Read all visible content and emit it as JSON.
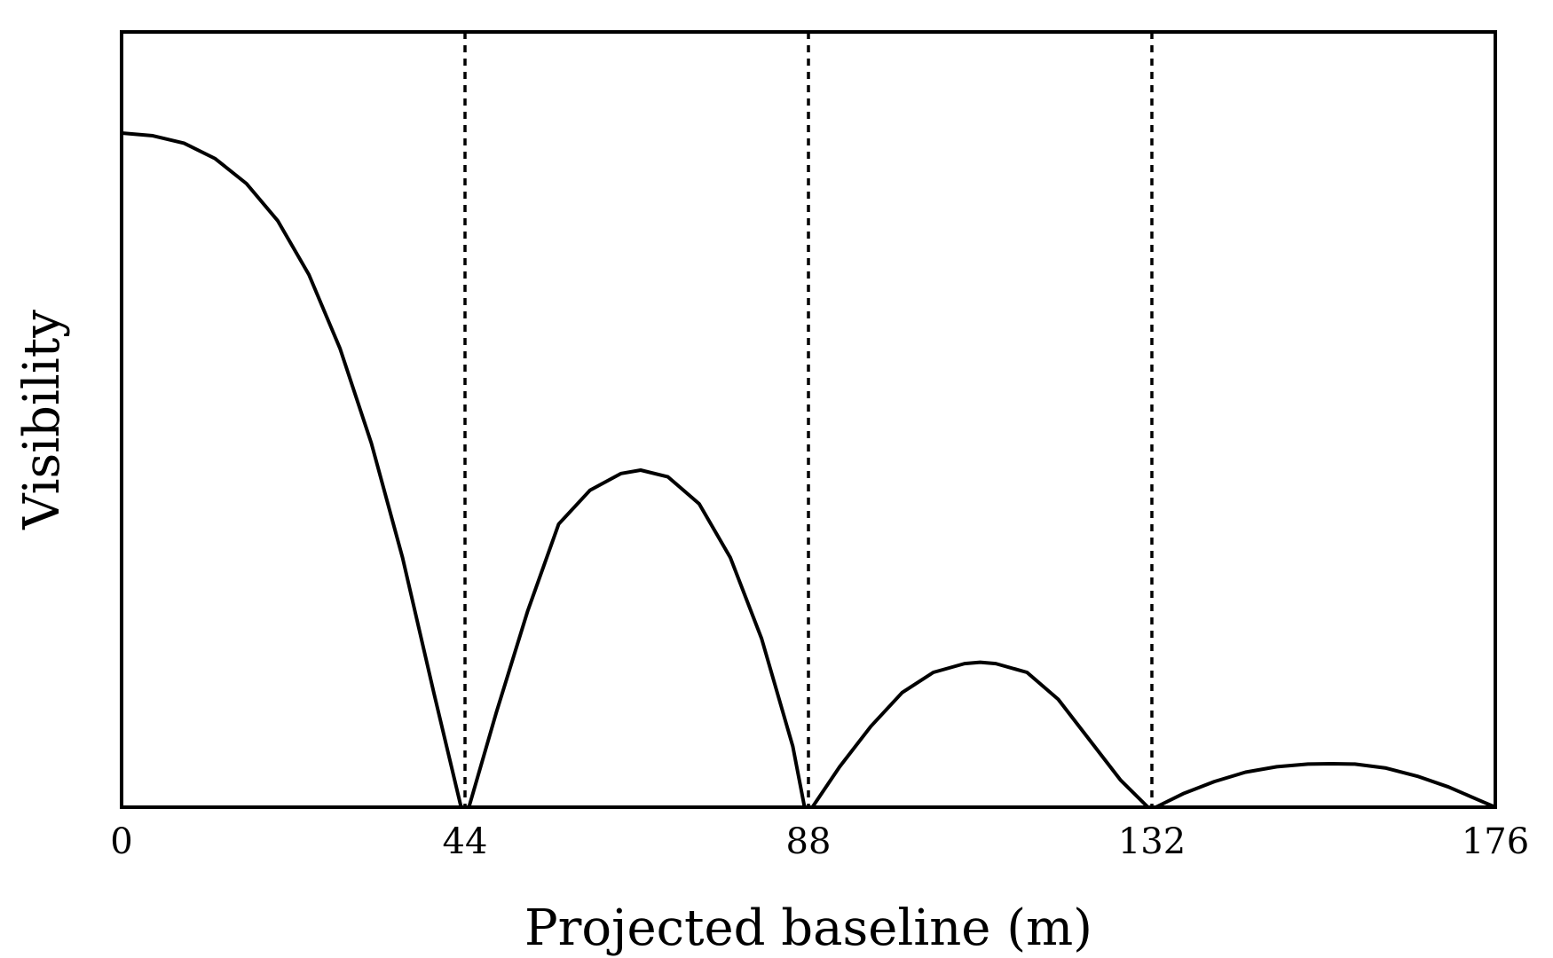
{
  "chart_data": {
    "type": "line",
    "title": "",
    "xlabel": "Projected baseline (m)",
    "ylabel": "Visibility",
    "xlim": [
      0,
      176
    ],
    "ylim": [
      0,
      1.15
    ],
    "x_ticks": [
      0,
      44,
      88,
      132,
      176
    ],
    "x_tick_labels": [
      "0",
      "44",
      "88",
      "132",
      "176"
    ],
    "y_ticks_shown": false,
    "grid": false,
    "legend": "none",
    "vertical_reference_lines": {
      "style": "dotted",
      "x": [
        44,
        88,
        132
      ]
    },
    "series": [
      {
        "x": [
          0,
          4,
          8,
          12,
          16,
          20,
          24,
          28,
          32,
          36,
          40,
          43.5,
          44.5,
          48,
          52,
          56,
          60,
          64,
          66.5,
          70,
          74,
          78,
          82,
          86,
          87.5,
          88.5,
          92,
          96,
          100,
          104,
          108,
          110,
          112,
          116,
          120,
          124,
          128,
          131.5,
          132.5,
          136,
          140,
          144,
          148,
          152,
          155,
          158,
          162,
          166,
          170,
          174,
          176
        ],
        "y": [
          1.0,
          0.996,
          0.985,
          0.962,
          0.925,
          0.87,
          0.79,
          0.68,
          0.54,
          0.37,
          0.17,
          0.0,
          0.0,
          0.14,
          0.29,
          0.42,
          0.47,
          0.495,
          0.5,
          0.49,
          0.45,
          0.37,
          0.25,
          0.09,
          0.0,
          0.0,
          0.06,
          0.12,
          0.17,
          0.2,
          0.213,
          0.215,
          0.213,
          0.2,
          0.16,
          0.1,
          0.04,
          0.0,
          0.0,
          0.02,
          0.038,
          0.052,
          0.06,
          0.064,
          0.0645,
          0.064,
          0.058,
          0.046,
          0.03,
          0.01,
          0.0
        ]
      }
    ],
    "colors": {
      "line": "#000000",
      "frame": "#000000"
    }
  }
}
